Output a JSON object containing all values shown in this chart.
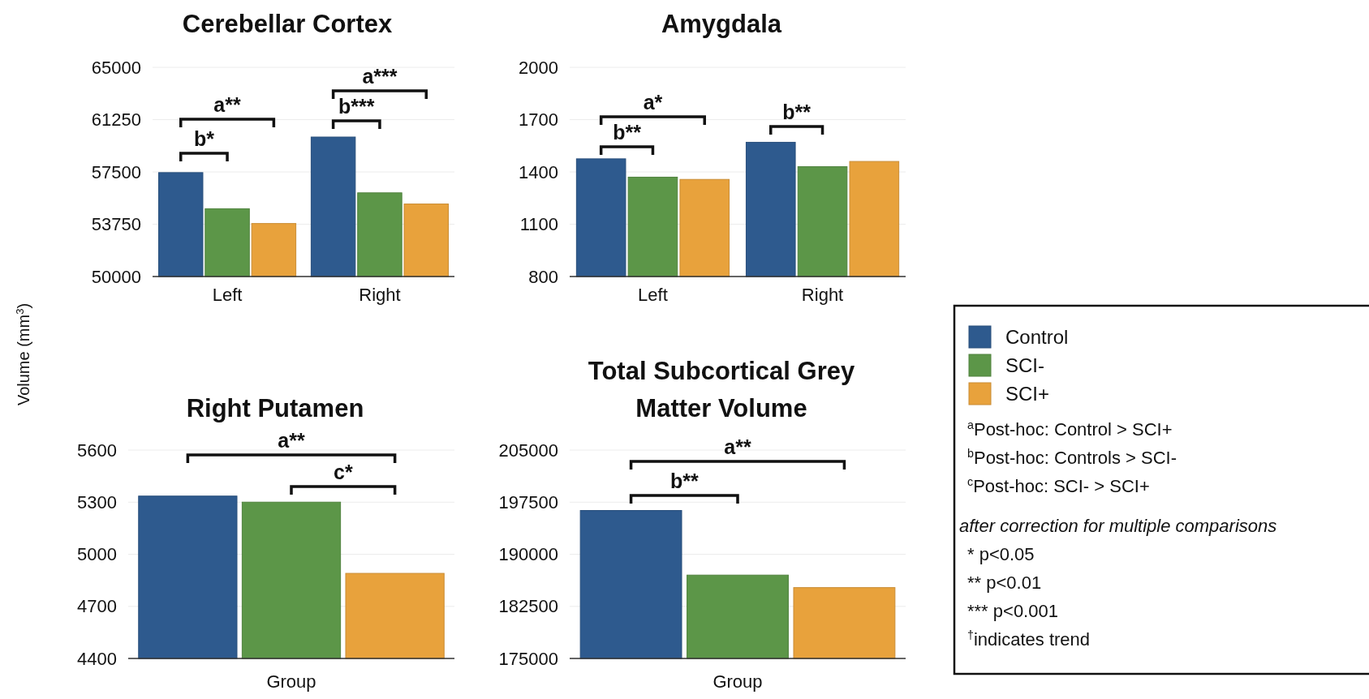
{
  "chart_data": [
    {
      "type": "bar",
      "title": "Cerebellar Cortex",
      "ylabel": "Volume (mm$^{3}$)",
      "categories": [
        "Left",
        "Right"
      ],
      "ylim": [
        50000,
        65000
      ],
      "yticks": [
        50000,
        53750,
        57500,
        61250,
        65000
      ],
      "grid": "y",
      "legend": "right",
      "series": [
        {
          "name": "Control",
          "color": "#2e5a8e",
          "values": [
            57450,
            60000
          ]
        },
        {
          "name": "SCI-",
          "color": "#5c9648",
          "values": [
            54860,
            56000
          ]
        },
        {
          "name": "SCI+",
          "color": "#e8a23c",
          "values": [
            53800,
            55200
          ]
        }
      ],
      "annotations": [
        "a**",
        "b*",
        "a***",
        "b***"
      ]
    },
    {
      "type": "bar",
      "title": "Amygdala",
      "categories": [
        "Left",
        "Right"
      ],
      "ylim": [
        800,
        2000
      ],
      "yticks": [
        800,
        1100,
        1400,
        1700,
        2000
      ],
      "grid": "y",
      "series": [
        {
          "color": "#2e5a8e",
          "values": [
            1475,
            1570
          ]
        },
        {
          "color": "#5c9648",
          "values": [
            1370,
            1430
          ]
        },
        {
          "color": "#e8a23c",
          "values": [
            1357,
            1460
          ]
        }
      ],
      "annotations": [
        "a*",
        "b**",
        "b**"
      ]
    },
    {
      "type": "bar",
      "title": "Right Putamen",
      "xlabel": "Group",
      "categories": [
        null,
        null,
        null
      ],
      "values": [
        5335,
        5300,
        4890
      ],
      "colors": [
        "#2e5a8e",
        "#5c9648",
        "#e8a23c"
      ],
      "ylim": [
        4400,
        5600
      ],
      "yticks": [
        4400,
        4700,
        5000,
        5300,
        5600
      ],
      "grid": "y",
      "annotations": [
        "a**",
        "c*"
      ]
    },
    {
      "type": "bar",
      "title": "Total Subcortical Grey Matter Volume",
      "xlabel": "Group",
      "categories": [
        null,
        null,
        null
      ],
      "values": [
        196300,
        187000,
        185200
      ],
      "colors": [
        "#2e5a8e",
        "#5c9648",
        "#e8a23c"
      ],
      "ylim": [
        175000,
        205000
      ],
      "yticks": [
        175000,
        182500,
        190000,
        197500,
        205000
      ],
      "grid": "y",
      "annotations": [
        "a**",
        "b**"
      ]
    },
    {
      "type": "other",
      "annotations": [
        "$^{a}$Post-hoc: Control > SCI+",
        "$^{b}$Post-hoc: Controls > SCI-",
        "$^{c}$Post-hoc: SCI- > SCI+",
        "after correction for multiple comparisons",
        "* p<0.05",
        "** p<0.01",
        "*** p<0.001",
        "$^{†}$indicates trend"
      ]
    }
  ]
}
